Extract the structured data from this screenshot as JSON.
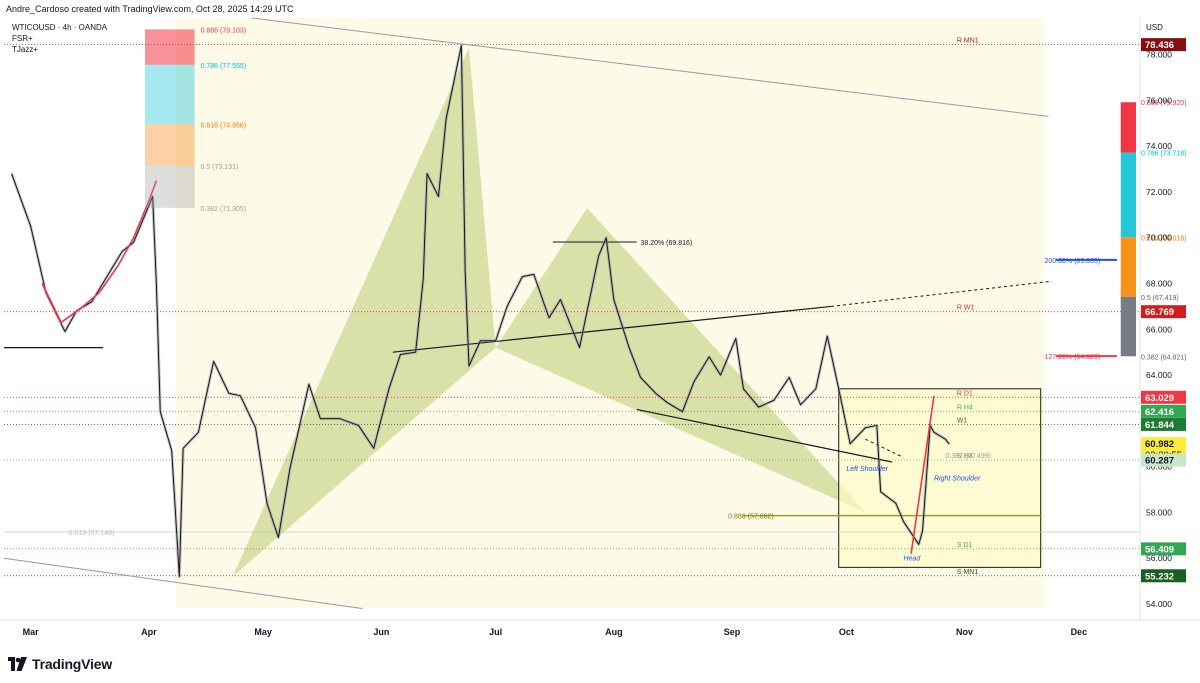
{
  "header": {
    "attribution": "Andre_Cardoso created with TradingView.com, Oct 28, 2025 14:29 UTC",
    "symbol": "WTICOUSD · 4h · OANDA",
    "indicators": [
      "FSR+",
      "TJazz+"
    ]
  },
  "footer": {
    "brand": "TradingView"
  },
  "colors": {
    "candles": "#131722",
    "wick": "#9598a1",
    "area_bg": "#fdfbe8",
    "pattern": "#d4dc9c",
    "red": "#f23645",
    "green": "#1e7b34",
    "blue": "#1e53e5",
    "orange": "#f7931a"
  },
  "chart_data": {
    "type": "line",
    "currency": "USD",
    "symbol": "WTICOUSD",
    "timeframe": "4h",
    "x_tick_labels": [
      "Mar",
      "Apr",
      "May",
      "Jun",
      "Jul",
      "Aug",
      "Sep",
      "Oct",
      "Nov",
      "Dec"
    ],
    "x_tick_dates": [
      "2025-03-01",
      "2025-04-01",
      "2025-05-01",
      "2025-06-01",
      "2025-07-01",
      "2025-08-01",
      "2025-09-01",
      "2025-10-01",
      "2025-11-01",
      "2025-12-01"
    ],
    "y_ticks": [
      "54.000",
      "56.000",
      "58.000",
      "60.000",
      "62.000",
      "64.000",
      "66.000",
      "68.000",
      "70.000",
      "72.000",
      "74.000",
      "76.000",
      "78.000"
    ],
    "ylim": [
      53.3,
      79.6
    ],
    "xlim": [
      "2025-02-22",
      "2025-12-16"
    ],
    "price_series": [
      [
        "2025-02-24",
        72.8
      ],
      [
        "2025-03-01",
        70.5
      ],
      [
        "2025-03-05",
        67.6
      ],
      [
        "2025-03-10",
        65.9
      ],
      [
        "2025-03-13",
        66.8
      ],
      [
        "2025-03-17",
        67.2
      ],
      [
        "2025-03-21",
        68.3
      ],
      [
        "2025-03-25",
        69.4
      ],
      [
        "2025-03-28",
        69.8
      ],
      [
        "2025-04-02",
        71.8
      ],
      [
        "2025-04-03",
        67.9
      ],
      [
        "2025-04-04",
        62.4
      ],
      [
        "2025-04-07",
        60.7
      ],
      [
        "2025-04-09",
        55.2
      ],
      [
        "2025-04-10",
        60.8
      ],
      [
        "2025-04-14",
        61.5
      ],
      [
        "2025-04-18",
        64.6
      ],
      [
        "2025-04-22",
        63.2
      ],
      [
        "2025-04-25",
        63.1
      ],
      [
        "2025-04-29",
        61.7
      ],
      [
        "2025-05-02",
        58.4
      ],
      [
        "2025-05-05",
        56.9
      ],
      [
        "2025-05-08",
        59.9
      ],
      [
        "2025-05-13",
        63.6
      ],
      [
        "2025-05-16",
        62.1
      ],
      [
        "2025-05-21",
        62.1
      ],
      [
        "2025-05-26",
        61.8
      ],
      [
        "2025-05-30",
        60.8
      ],
      [
        "2025-06-03",
        63.4
      ],
      [
        "2025-06-06",
        64.9
      ],
      [
        "2025-06-10",
        65.0
      ],
      [
        "2025-06-12",
        68.2
      ],
      [
        "2025-06-13",
        72.8
      ],
      [
        "2025-06-16",
        71.8
      ],
      [
        "2025-06-18",
        75.2
      ],
      [
        "2025-06-22",
        78.4
      ],
      [
        "2025-06-23",
        68.5
      ],
      [
        "2025-06-24",
        64.4
      ],
      [
        "2025-06-27",
        65.5
      ],
      [
        "2025-07-01",
        65.5
      ],
      [
        "2025-07-04",
        67.0
      ],
      [
        "2025-07-08",
        68.3
      ],
      [
        "2025-07-11",
        68.4
      ],
      [
        "2025-07-15",
        66.5
      ],
      [
        "2025-07-18",
        67.3
      ],
      [
        "2025-07-23",
        65.2
      ],
      [
        "2025-07-28",
        69.2
      ],
      [
        "2025-07-30",
        70.0
      ],
      [
        "2025-08-01",
        67.3
      ],
      [
        "2025-08-05",
        65.2
      ],
      [
        "2025-08-08",
        63.9
      ],
      [
        "2025-08-12",
        63.2
      ],
      [
        "2025-08-15",
        62.8
      ],
      [
        "2025-08-19",
        62.4
      ],
      [
        "2025-08-22",
        63.7
      ],
      [
        "2025-08-26",
        64.8
      ],
      [
        "2025-08-29",
        64.0
      ],
      [
        "2025-09-02",
        65.6
      ],
      [
        "2025-09-04",
        63.4
      ],
      [
        "2025-09-08",
        62.6
      ],
      [
        "2025-09-12",
        62.9
      ],
      [
        "2025-09-16",
        63.9
      ],
      [
        "2025-09-19",
        62.7
      ],
      [
        "2025-09-23",
        63.4
      ],
      [
        "2025-09-26",
        65.7
      ],
      [
        "2025-09-29",
        63.4
      ],
      [
        "2025-10-02",
        61.0
      ],
      [
        "2025-10-06",
        61.7
      ],
      [
        "2025-10-09",
        61.8
      ],
      [
        "2025-10-10",
        58.9
      ],
      [
        "2025-10-14",
        58.4
      ],
      [
        "2025-10-16",
        57.6
      ],
      [
        "2025-10-20",
        56.6
      ],
      [
        "2025-10-21",
        57.2
      ],
      [
        "2025-10-23",
        61.8
      ],
      [
        "2025-10-24",
        61.5
      ],
      [
        "2025-10-27",
        61.2
      ],
      [
        "2025-10-28",
        60.98
      ]
    ],
    "red_ma_series": [
      [
        "2025-03-04",
        68.0
      ],
      [
        "2025-03-09",
        66.3
      ],
      [
        "2025-03-14",
        66.9
      ],
      [
        "2025-03-19",
        67.6
      ],
      [
        "2025-03-24",
        68.8
      ],
      [
        "2025-03-28",
        70.0
      ],
      [
        "2025-04-01",
        71.6
      ],
      [
        "2025-04-03",
        72.5
      ]
    ],
    "axis_labels": [
      {
        "text": "78.436",
        "price": 78.436,
        "bg": "#880e0e"
      },
      {
        "text": "66.769",
        "price": 66.769,
        "bg": "#cc1f1f"
      },
      {
        "text": "63.029",
        "price": 63.029,
        "bg": "#f23645"
      },
      {
        "text": "62.416",
        "price": 62.416,
        "bg": "#32a852"
      },
      {
        "text": "61.844",
        "price": 61.844,
        "bg": "#1e7b34"
      },
      {
        "text": "60.982",
        "sub": "02:30:55",
        "price": 60.982,
        "bg": "#ffeb3b",
        "fg": "#131722"
      },
      {
        "text": "60.287",
        "price": 60.287,
        "bg": "#c8e6c9",
        "fg": "#131722"
      },
      {
        "text": "56.409",
        "price": 56.409,
        "bg": "#32a852"
      },
      {
        "text": "55.232",
        "price": 55.232,
        "bg": "#1b5e20"
      }
    ],
    "horizontal_levels": [
      {
        "price": 78.436,
        "label": "R MN1",
        "color": "#b71c1c"
      },
      {
        "price": 66.769,
        "label": "R W1",
        "color": "#d32f2f"
      },
      {
        "price": 63.029,
        "label": "R D1",
        "color": "#f23645"
      },
      {
        "price": 62.416,
        "label": "R H4",
        "color": "#4caf50"
      },
      {
        "price": 61.844,
        "label": "W1",
        "color": "#2e7d32"
      },
      {
        "price": 60.287,
        "label": "S H4",
        "color": "#66bb6a"
      },
      {
        "price": 56.409,
        "label": "S D1",
        "color": "#4caf50"
      },
      {
        "price": 55.232,
        "label": "S MN1",
        "color": "#1b5e20"
      }
    ],
    "fib_left": [
      {
        "level": "0.886",
        "label": "0.886 (79.103)",
        "price": 79.103,
        "color": "#f23645"
      },
      {
        "level": "0.786",
        "label": "0.786 (77.555)",
        "price": 77.555,
        "color": "#00bcd4"
      },
      {
        "level": "0.618",
        "label": "0.618 (74.956)",
        "price": 74.956,
        "color": "#f57c00"
      },
      {
        "level": "0.5",
        "label": "0.5 (73.131)",
        "price": 73.131,
        "color": "#9e9e9e"
      },
      {
        "level": "0.382",
        "label": "0.382 (71.305)",
        "price": 71.305,
        "color": "#9e9e9e"
      }
    ],
    "fib_right": [
      {
        "level": "0.886",
        "label": "0.886 (75.920)",
        "price": 75.92,
        "color": "#f23645"
      },
      {
        "level": "0.786",
        "label": "0.786 (73.718)",
        "price": 73.718,
        "color": "#00bcd4"
      },
      {
        "level": "0.618",
        "label": "0.618 (70.018)",
        "price": 70.018,
        "color": "#f57c00"
      },
      {
        "level": "0.5",
        "label": "0.5 (67.419)",
        "price": 67.419,
        "color": "#616161"
      },
      {
        "level": "0.382",
        "label": "0.382 (64.821)",
        "price": 64.821,
        "color": "#616161"
      }
    ],
    "annotations": [
      {
        "text": "38.20% (69.816)",
        "price": 69.816,
        "color": "#131722"
      },
      {
        "text": "200.00% (69.035)",
        "price": 69.035,
        "color": "#1e53e5"
      },
      {
        "text": "127.20% (64.829)",
        "price": 64.829,
        "color": "#f23645"
      },
      {
        "text": "0.886 (57.862)",
        "price": 57.862,
        "color": "#827717"
      },
      {
        "text": "0.382 (60.499)",
        "price": 60.499,
        "color": "#9e9e9e"
      },
      {
        "text": "0.618 (57.148)",
        "price": 57.148,
        "color": "#bdbdbd"
      },
      {
        "text": "Left Shoulder",
        "color": "#1e53e5"
      },
      {
        "text": "Right Shoulder",
        "color": "#1e53e5"
      },
      {
        "text": "Head",
        "color": "#1e53e5"
      }
    ]
  }
}
